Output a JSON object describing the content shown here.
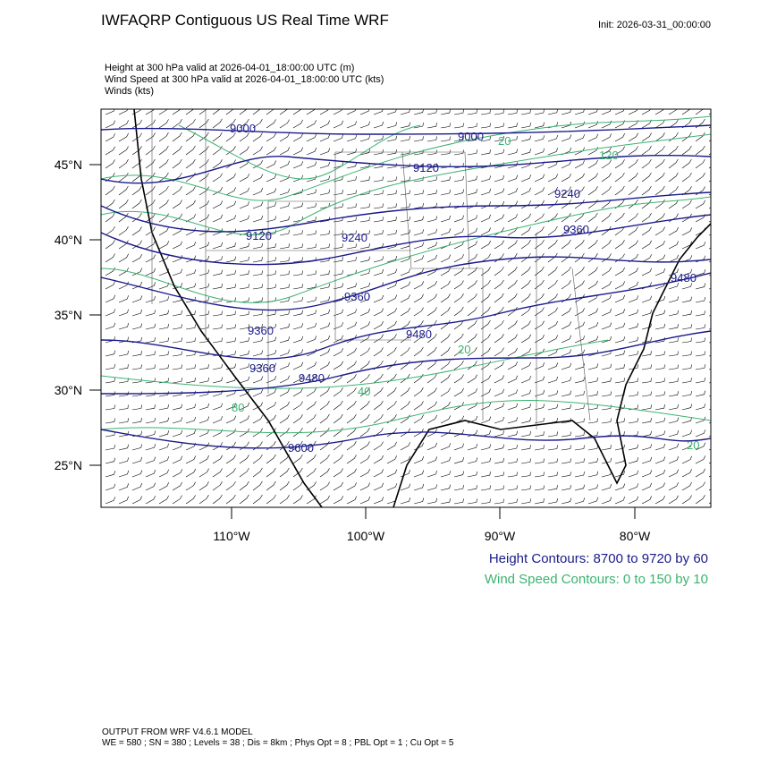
{
  "header": {
    "title": "IWFAQRP Contiguous US Real Time WRF",
    "init": "Init: 2026-03-31_00:00:00"
  },
  "fields": [
    "Height at 300 hPa valid at 2026-04-01_18:00:00 UTC   (m)",
    "Wind Speed at 300 hPa valid at 2026-04-01_18:00:00 UTC   (kts)",
    "Winds   (kts)"
  ],
  "map": {
    "lat_labels": [
      "45°N",
      "40°N",
      "35°N",
      "30°N",
      "25°N"
    ],
    "lon_labels": [
      "110°W",
      "100°W",
      "90°W",
      "80°W"
    ],
    "height_labels": [
      "9000",
      "9000",
      "9120",
      "9120",
      "9240",
      "9240",
      "9360",
      "9360",
      "9360",
      "9360",
      "9480",
      "9480",
      "9480",
      "9600"
    ],
    "wind_labels": [
      "20",
      "120",
      "80",
      "20",
      "40",
      "20"
    ]
  },
  "legend": [
    "Height Contours: 8700 to 9720 by 60",
    "Wind Speed Contours: 0 to 150 by 10"
  ],
  "footer": [
    "OUTPUT FROM WRF V4.6.1 MODEL",
    "WE = 580 ; SN = 380 ; Levels = 38 ; Dis = 8km ; Phys Opt = 8 ; PBL Opt = 1 ; Cu Opt = 5"
  ]
}
